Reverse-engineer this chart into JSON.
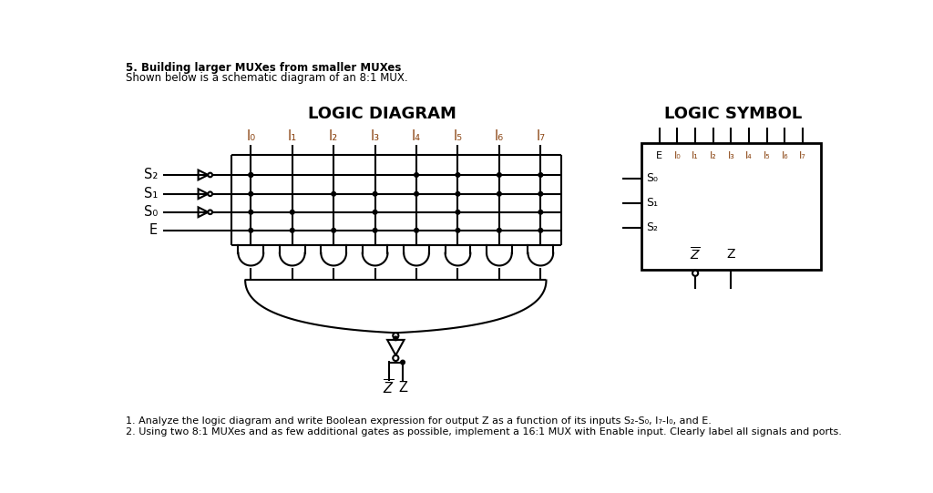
{
  "title_logic": "LOGIC DIAGRAM",
  "title_symbol": "LOGIC SYMBOL",
  "header_title": "5. Building larger MUXes from smaller MUXes",
  "subtitle": "Shown below is a schematic diagram of an 8:1 MUX.",
  "footer1": "1. Analyze the logic diagram and write Boolean expression for output Z as a function of its inputs S₂-S₀, I₇-I₀, and E.",
  "footer2": "2. Using two 8:1 MUXes and as few additional gates as possible, implement a 16:1 MUX with Enable input. Clearly label all signals and ports.",
  "input_labels": [
    "I₀",
    "I₁",
    "I₂",
    "I₃",
    "I₄",
    "I₅",
    "I₆",
    "I₇"
  ],
  "bg_color": "#ffffff",
  "line_color": "#000000",
  "label_color": "#8B4513"
}
